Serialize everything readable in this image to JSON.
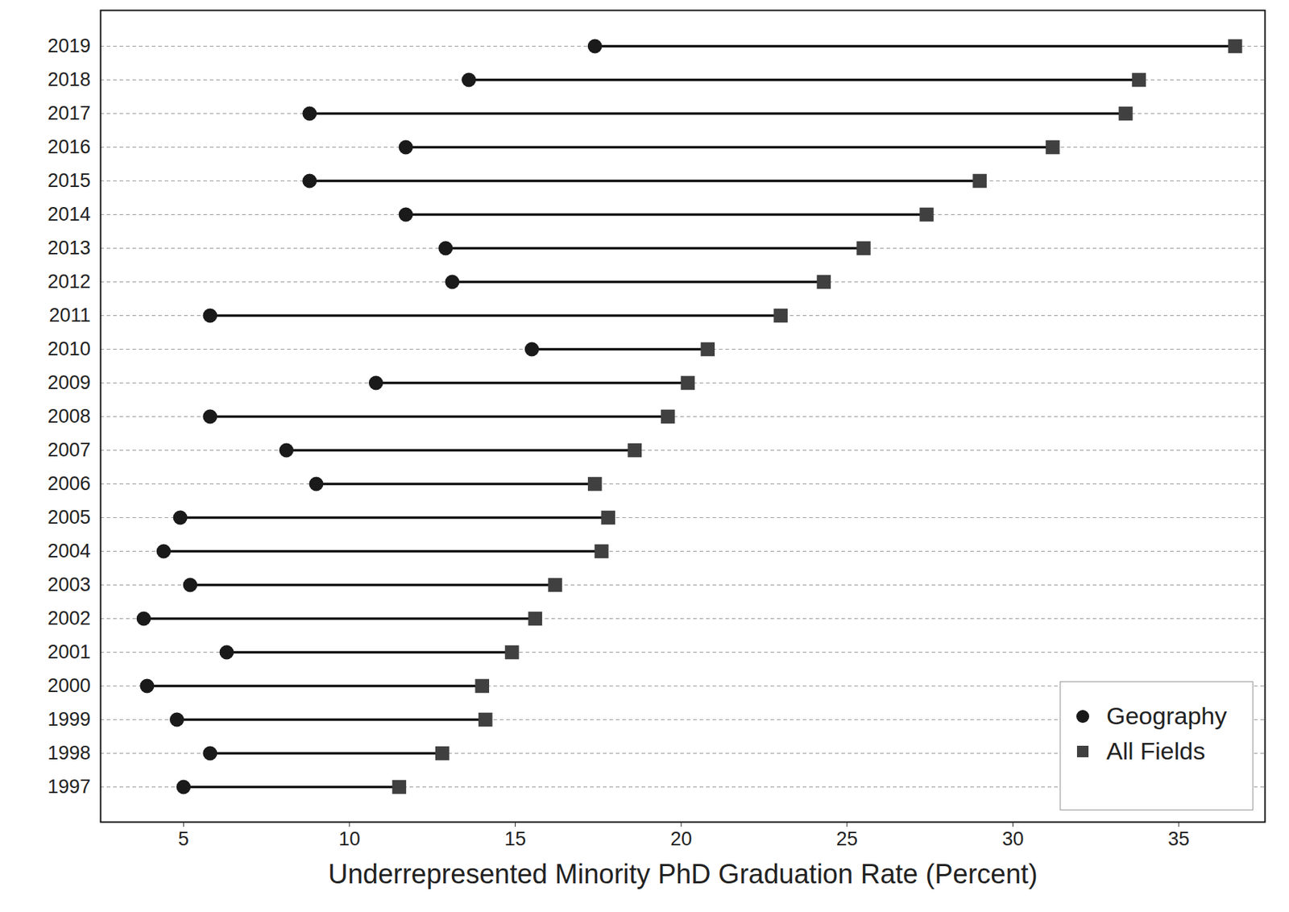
{
  "chart_data": {
    "type": "dumbbell",
    "orientation": "horizontal",
    "x_label": "Underrepresented Minority PhD Graduation Rate (Percent)",
    "categories": [
      "2019",
      "2018",
      "2017",
      "2016",
      "2015",
      "2014",
      "2013",
      "2012",
      "2011",
      "2010",
      "2009",
      "2008",
      "2007",
      "2006",
      "2005",
      "2004",
      "2003",
      "2002",
      "2001",
      "2000",
      "1999",
      "1998",
      "1997"
    ],
    "series": [
      {
        "name": "Geography",
        "color": "#1a1a1a",
        "marker": "circle",
        "values": [
          17.4,
          13.6,
          8.8,
          11.7,
          8.8,
          11.7,
          12.9,
          13.1,
          5.8,
          15.5,
          10.8,
          5.8,
          8.1,
          9.0,
          4.9,
          4.4,
          5.2,
          3.8,
          6.3,
          3.9,
          4.8,
          5.8,
          5.0
        ]
      },
      {
        "name": "All Fields",
        "color": "#404040",
        "marker": "square",
        "values": [
          36.7,
          33.8,
          33.4,
          31.2,
          29.0,
          27.4,
          25.5,
          24.3,
          23.0,
          20.8,
          20.2,
          19.6,
          18.6,
          17.4,
          17.8,
          17.6,
          16.2,
          15.6,
          14.9,
          14.0,
          14.1,
          12.8,
          11.5
        ]
      }
    ],
    "xlim": [
      2.5,
      37.6
    ],
    "xticks": [
      5,
      10,
      15,
      20,
      25,
      30,
      35
    ],
    "grid": true,
    "legend": "bottom-right"
  }
}
